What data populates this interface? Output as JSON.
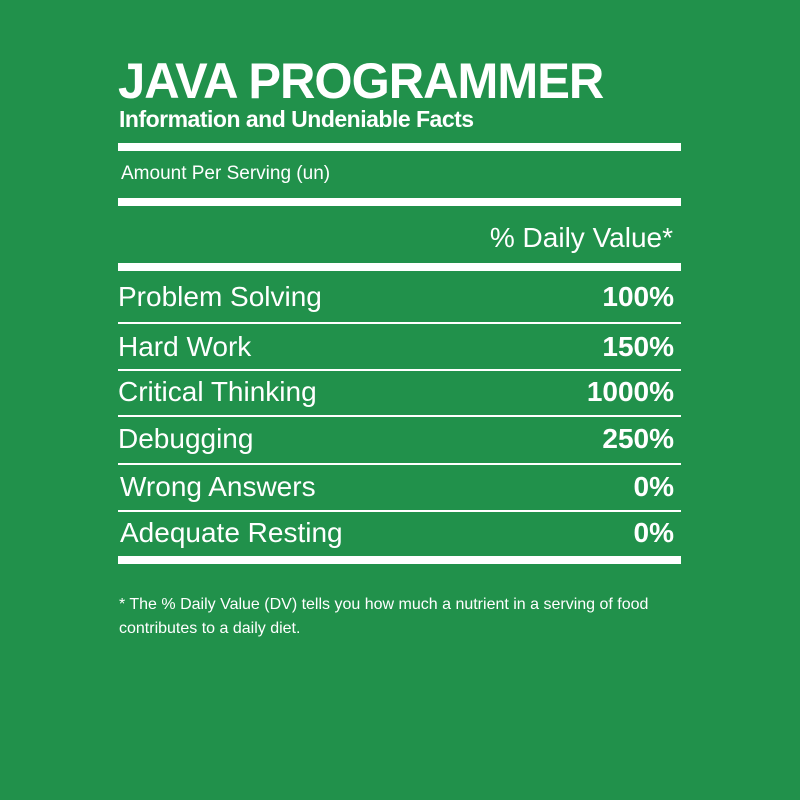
{
  "title": "JAVA PROGRAMMER",
  "subtitle": "Information and Undeniable Facts",
  "amount_per_serving": "Amount Per Serving (un)",
  "daily_value_header": "% Daily Value*",
  "rows": [
    {
      "label": "Problem Solving",
      "value": "100%"
    },
    {
      "label": "Hard Work",
      "value": "150%"
    },
    {
      "label": "Critical Thinking",
      "value": "1000%"
    },
    {
      "label": "Debugging",
      "value": "250%"
    },
    {
      "label": "Wrong Answers",
      "value": "0%"
    },
    {
      "label": "Adequate Resting",
      "value": "0%"
    }
  ],
  "footnote": "* The % Daily Value (DV) tells you how much a nutrient in a serving of food contributes to a daily diet.",
  "colors": {
    "background": "#21914b",
    "foreground": "#ffffff"
  }
}
